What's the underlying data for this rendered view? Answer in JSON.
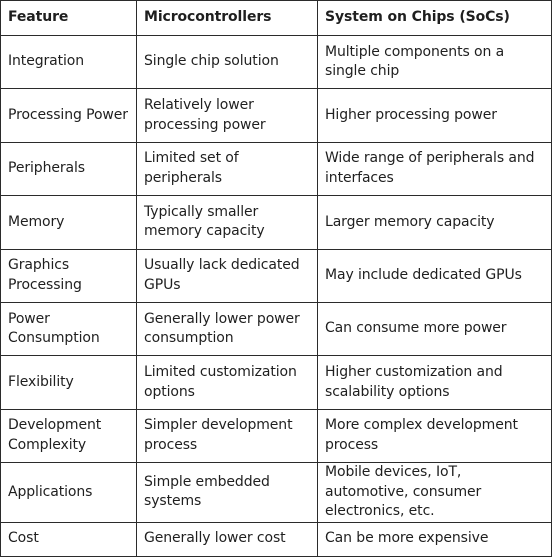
{
  "table": {
    "headers": [
      "Feature",
      "Microcontrollers",
      "System on Chips (SoCs)"
    ],
    "rows": [
      [
        "Integration",
        "Single chip solution",
        "Multiple components on a single chip"
      ],
      [
        "Processing Power",
        "Relatively lower processing power",
        "Higher processing power"
      ],
      [
        "Peripherals",
        "Limited set of peripherals",
        "Wide range of peripherals and interfaces"
      ],
      [
        "Memory",
        "Typically smaller memory capacity",
        "Larger memory capacity"
      ],
      [
        "Graphics Processing",
        "Usually lack dedicated GPUs",
        "May include dedicated GPUs"
      ],
      [
        "Power Consumption",
        "Generally lower power consumption",
        "Can consume more power"
      ],
      [
        "Flexibility",
        "Limited customization options",
        "Higher customization and scalability options"
      ],
      [
        "Development Complexity",
        "Simpler development process",
        "More complex development process"
      ],
      [
        "Applications",
        "Simple embedded systems",
        "Mobile devices, IoT, automotive, consumer electronics, etc."
      ],
      [
        "Cost",
        "Generally lower cost",
        "Can be more expensive"
      ]
    ]
  }
}
